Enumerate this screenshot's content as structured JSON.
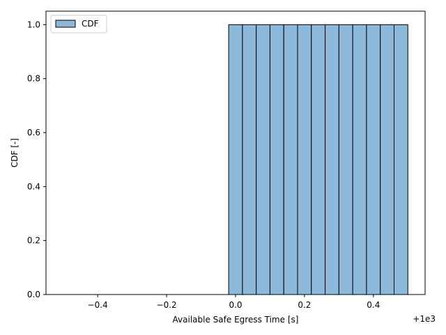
{
  "chart_data": {
    "type": "bar",
    "xlabel": "Available Safe Egress Time [s]",
    "ylabel": "CDF [-]",
    "x_offset_label": "+1e3",
    "xlim": [
      -0.55,
      0.55
    ],
    "ylim": [
      0,
      1.05
    ],
    "xticks": [
      -0.4,
      -0.2,
      0.0,
      0.2,
      0.4
    ],
    "xtick_labels": [
      "−0.4",
      "−0.2",
      "0.0",
      "0.2",
      "0.4"
    ],
    "yticks": [
      0.0,
      0.2,
      0.4,
      0.6,
      0.8,
      1.0
    ],
    "ytick_labels": [
      "0.0",
      "0.2",
      "0.4",
      "0.6",
      "0.8",
      "1.0"
    ],
    "legend": {
      "position": "top-left",
      "entries": [
        "CDF"
      ]
    },
    "grid": false,
    "bar_color": "#8cb8d9",
    "edge_color": "#000000",
    "series": [
      {
        "name": "CDF",
        "bins": [
          {
            "x0": -0.5,
            "x1": -0.46,
            "value": 0
          },
          {
            "x0": -0.46,
            "x1": -0.42,
            "value": 0
          },
          {
            "x0": -0.42,
            "x1": -0.38,
            "value": 0
          },
          {
            "x0": -0.38,
            "x1": -0.34,
            "value": 0
          },
          {
            "x0": -0.34,
            "x1": -0.3,
            "value": 0
          },
          {
            "x0": -0.3,
            "x1": -0.26,
            "value": 0
          },
          {
            "x0": -0.26,
            "x1": -0.22,
            "value": 0
          },
          {
            "x0": -0.22,
            "x1": -0.18,
            "value": 0
          },
          {
            "x0": -0.18,
            "x1": -0.14,
            "value": 0
          },
          {
            "x0": -0.14,
            "x1": -0.1,
            "value": 0
          },
          {
            "x0": -0.1,
            "x1": -0.06,
            "value": 0
          },
          {
            "x0": -0.06,
            "x1": -0.02,
            "value": 0
          },
          {
            "x0": -0.02,
            "x1": 0.02,
            "value": 1
          },
          {
            "x0": 0.02,
            "x1": 0.06,
            "value": 1
          },
          {
            "x0": 0.06,
            "x1": 0.1,
            "value": 1
          },
          {
            "x0": 0.1,
            "x1": 0.14,
            "value": 1
          },
          {
            "x0": 0.14,
            "x1": 0.18,
            "value": 1
          },
          {
            "x0": 0.18,
            "x1": 0.22,
            "value": 1
          },
          {
            "x0": 0.22,
            "x1": 0.26,
            "value": 1
          },
          {
            "x0": 0.26,
            "x1": 0.3,
            "value": 1
          },
          {
            "x0": 0.3,
            "x1": 0.34,
            "value": 1
          },
          {
            "x0": 0.34,
            "x1": 0.38,
            "value": 1
          },
          {
            "x0": 0.38,
            "x1": 0.42,
            "value": 1
          },
          {
            "x0": 0.42,
            "x1": 0.46,
            "value": 1
          },
          {
            "x0": 0.46,
            "x1": 0.5,
            "value": 1
          }
        ]
      }
    ]
  }
}
